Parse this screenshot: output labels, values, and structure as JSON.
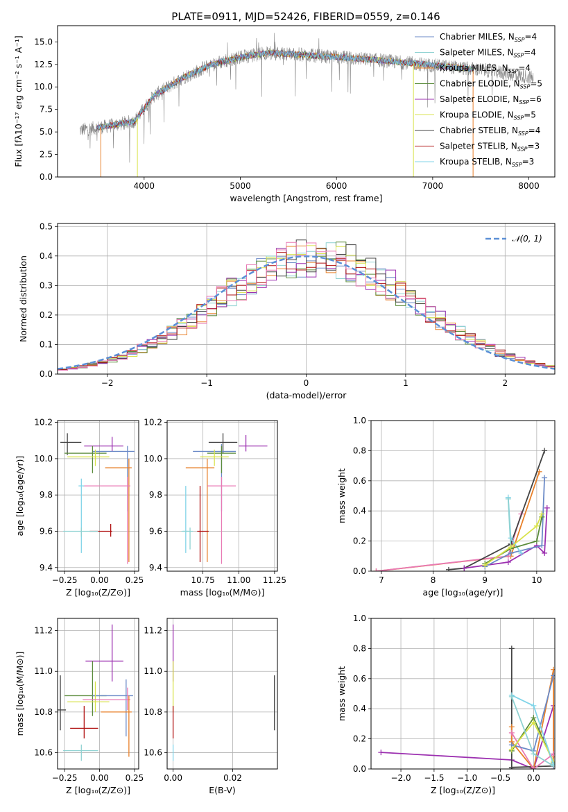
{
  "title": "PLATE=0911, MJD=52426, FIBERID=0559, z=0.146",
  "colors": {
    "Chabrier MILES": "#6b8ac7",
    "Salpeter MILES": "#8fd2d2",
    "Kroupa MILES": "#e8802a",
    "Chabrier ELODIE": "#5b8c3c",
    "Salpeter ELODIE": "#9c30b0",
    "Kroupa ELODIE": "#d8e24a",
    "Chabrier STELIB": "#444444",
    "Salpeter STELIB": "#b01010",
    "Kroupa STELIB": "#80d4e8",
    "extra_hist": "#e87ab4",
    "normal": "#5b8fd6"
  },
  "chart_data": [
    {
      "type": "line",
      "title": "PLATE=0911, MJD=52426, FIBERID=0559, z=0.146",
      "xlabel": "wavelength [Angstrom, rest frame]",
      "ylabel": "Flux [fλ10⁻¹⁷ erg cm⁻² s⁻¹ A⁻¹]",
      "xlim": [
        3100,
        8270
      ],
      "ylim": [
        0,
        16.8
      ],
      "xticks": [
        4000,
        5000,
        6000,
        7000,
        8000
      ],
      "yticks": [
        0.0,
        2.5,
        5.0,
        7.5,
        10.0,
        12.5,
        15.0
      ],
      "legend": "top-right",
      "legend_entries": [
        {
          "name": "Chabrier MILES, N",
          "sub": "SSP",
          "tail": "=4",
          "color": "Chabrier MILES"
        },
        {
          "name": "Salpeter MILES, N",
          "sub": "SSP",
          "tail": "=4",
          "color": "Salpeter MILES"
        },
        {
          "name": "Kroupa MILES, N",
          "sub": "SSP",
          "tail": "=4",
          "color": "Kroupa MILES"
        },
        {
          "name": "Chabrier ELODIE, N",
          "sub": "SSP",
          "tail": "=5",
          "color": "Chabrier ELODIE"
        },
        {
          "name": "Salpeter ELODIE, N",
          "sub": "SSP",
          "tail": "=6",
          "color": "Salpeter ELODIE"
        },
        {
          "name": "Kroupa ELODIE, N",
          "sub": "SSP",
          "tail": "=5",
          "color": "Kroupa ELODIE"
        },
        {
          "name": "Chabrier STELIB, N",
          "sub": "SSP",
          "tail": "=4",
          "color": "Chabrier STELIB"
        },
        {
          "name": "Salpeter STELIB, N",
          "sub": "SSP",
          "tail": "=3",
          "color": "Salpeter STELIB"
        },
        {
          "name": "Kroupa STELIB, N",
          "sub": "SSP",
          "tail": "=3",
          "color": "Kroupa STELIB"
        }
      ],
      "continuum_anchor": {
        "x": [
          3330,
          3600,
          3900,
          4100,
          4400,
          4700,
          5000,
          5300,
          5600,
          6000,
          6400,
          6800,
          7200,
          7600,
          8050
        ],
        "y": [
          5.2,
          5.6,
          6.2,
          9.0,
          11.0,
          12.5,
          13.3,
          13.8,
          13.6,
          13.3,
          13.0,
          12.6,
          12.2,
          11.8,
          11.0
        ]
      },
      "data_range": [
        3330,
        8050
      ],
      "model_range": [
        3500,
        7420
      ],
      "dips": [
        3550,
        3930,
        6800,
        7420
      ]
    },
    {
      "type": "histogram",
      "xlabel": "(data-model)/error",
      "ylabel": "Normed distribution",
      "xlim": [
        -2.5,
        2.5
      ],
      "ylim": [
        0,
        0.51
      ],
      "xticks": [
        -2,
        -1,
        0,
        1,
        2
      ],
      "yticks": [
        0.0,
        0.1,
        0.2,
        0.3,
        0.4,
        0.5
      ],
      "legend": "top-right",
      "legend_entry": "𝒩(0, 1)",
      "bin_width": 0.1
    },
    {
      "type": "errorbar",
      "xlabel": "Z [log₁₀(Z/Z⊙)]",
      "ylabel": "age  [log₁₀(age/yr)]",
      "xlim": [
        -0.3,
        0.28
      ],
      "ylim": [
        9.38,
        10.21
      ],
      "xticks": [
        -0.25,
        0.0,
        0.25
      ],
      "yticks": [
        9.4,
        9.6,
        9.8,
        10.0,
        10.2
      ],
      "points": [
        {
          "c": "Chabrier STELIB",
          "x": -0.23,
          "y": 10.09,
          "ex": [
            0.05,
            0.1
          ],
          "ey": [
            0.07,
            0.05
          ]
        },
        {
          "c": "Salpeter ELODIE",
          "x": 0.09,
          "y": 10.07,
          "ex": [
            0.2,
            0.08
          ],
          "ey": [
            0.03,
            0.05
          ]
        },
        {
          "c": "Chabrier MILES",
          "x": 0.2,
          "y": 10.04,
          "ex": [
            0.25,
            0.05
          ],
          "ey": [
            0.33,
            0.03
          ]
        },
        {
          "c": "Chabrier ELODIE",
          "x": -0.05,
          "y": 10.03,
          "ex": [
            0.2,
            0.1
          ],
          "ey": [
            0.11,
            0.04
          ]
        },
        {
          "c": "Kroupa ELODIE",
          "x": -0.03,
          "y": 10.01,
          "ex": [
            0.2,
            0.1
          ],
          "ey": [
            0.05,
            0.04
          ]
        },
        {
          "c": "Kroupa MILES",
          "x": 0.21,
          "y": 9.95,
          "ex": [
            0.17,
            0.02
          ],
          "ey": [
            0.52,
            0.05
          ]
        },
        {
          "c": "extra_hist",
          "x": 0.2,
          "y": 9.85,
          "ex": [
            0.32,
            0.02
          ],
          "ey": [
            0.43,
            0.05
          ]
        },
        {
          "c": "Kroupa STELIB",
          "x": -0.13,
          "y": 9.85,
          "ex": [
            0.02,
            0.02
          ],
          "ey": [
            0.37,
            0.04
          ]
        },
        {
          "c": "Salpeter STELIB",
          "x": 0.08,
          "y": 9.6,
          "ex": [
            0.15,
            0.01
          ],
          "ey": [
            0.03,
            0.04
          ]
        },
        {
          "c": "Salpeter MILES",
          "x": -0.13,
          "y": 9.6,
          "ex": [
            0.13,
            0.12
          ],
          "ey": [
            0.03,
            0.02
          ]
        }
      ]
    },
    {
      "type": "errorbar",
      "xlabel": "mass [log₁₀(M/M⊙)]",
      "xlim": [
        10.5,
        11.27
      ],
      "ylim": [
        9.38,
        10.21
      ],
      "xticks": [
        10.75,
        11.0,
        11.25
      ],
      "xtick_labels": [
        "10.75",
        "11.00",
        "11.25"
      ],
      "yticks": [
        9.4,
        9.6,
        9.8,
        10.0,
        10.2
      ],
      "points": [
        {
          "c": "Chabrier STELIB",
          "x": 10.89,
          "y": 10.09,
          "ex": [
            0.1,
            0.1
          ],
          "ey": [
            0.06,
            0.05
          ]
        },
        {
          "c": "Salpeter ELODIE",
          "x": 11.05,
          "y": 10.07,
          "ex": [
            0.05,
            0.15
          ],
          "ey": [
            0.03,
            0.06
          ]
        },
        {
          "c": "Chabrier MILES",
          "x": 10.88,
          "y": 10.04,
          "ex": [
            0.2,
            0.1
          ],
          "ey": [
            0.33,
            0.04
          ]
        },
        {
          "c": "Chabrier ELODIE",
          "x": 10.88,
          "y": 10.03,
          "ex": [
            0.1,
            0.1
          ],
          "ey": [
            0.11,
            0.04
          ]
        },
        {
          "c": "Kroupa ELODIE",
          "x": 10.83,
          "y": 10.01,
          "ex": [
            0.1,
            0.1
          ],
          "ey": [
            0.05,
            0.04
          ]
        },
        {
          "c": "Kroupa MILES",
          "x": 10.78,
          "y": 9.95,
          "ex": [
            0.15,
            0.05
          ],
          "ey": [
            0.52,
            0.05
          ]
        },
        {
          "c": "extra_hist",
          "x": 10.88,
          "y": 9.85,
          "ex": [
            0.1,
            0.1
          ],
          "ey": [
            0.43,
            0.05
          ]
        },
        {
          "c": "Kroupa STELIB",
          "x": 10.63,
          "y": 9.6,
          "ex": [
            0.02,
            0.02
          ],
          "ey": [
            0.12,
            0.25
          ]
        },
        {
          "c": "Salpeter STELIB",
          "x": 10.73,
          "y": 9.6,
          "ex": [
            0.02,
            0.06
          ],
          "ey": [
            0.17,
            0.25
          ]
        },
        {
          "c": "Salpeter MILES",
          "x": 10.66,
          "y": 9.6,
          "ex": [
            0.06,
            0.02
          ],
          "ey": [
            0.1,
            0.02
          ]
        }
      ]
    },
    {
      "type": "line",
      "xlabel": "age  [log₁₀(age/yr)]",
      "ylabel": "mass weight",
      "xlim": [
        6.8,
        10.35
      ],
      "ylim": [
        0,
        1
      ],
      "xticks": [
        7,
        8,
        9,
        10
      ],
      "yticks": [
        0.0,
        0.2,
        0.4,
        0.6,
        0.8,
        1.0
      ],
      "series": [
        {
          "c": "Kroupa MILES",
          "x": [
            6.9,
            9.5,
            10.05
          ],
          "y": [
            0.0,
            0.1,
            0.66
          ]
        },
        {
          "c": "extra_hist",
          "x": [
            6.9,
            9.45,
            9.7
          ],
          "y": [
            0.0,
            0.1,
            0.38
          ]
        },
        {
          "c": "Chabrier STELIB",
          "x": [
            8.3,
            8.6,
            9.5,
            10.15
          ],
          "y": [
            0.01,
            0.02,
            0.18,
            0.8
          ]
        },
        {
          "c": "Salpeter ELODIE",
          "x": [
            8.6,
            9.45,
            10.0,
            10.15,
            10.2
          ],
          "y": [
            0.02,
            0.06,
            0.17,
            0.12,
            0.42
          ]
        },
        {
          "c": "Chabrier MILES",
          "x": [
            9.0,
            9.5,
            10.1,
            10.15
          ],
          "y": [
            0.03,
            0.12,
            0.17,
            0.62
          ]
        },
        {
          "c": "Kroupa STELIB",
          "x": [
            9.45,
            9.5,
            9.7
          ],
          "y": [
            0.49,
            0.22,
            0.12
          ]
        },
        {
          "c": "Salpeter MILES",
          "x": [
            9.45,
            9.5
          ],
          "y": [
            0.48,
            0.15
          ]
        },
        {
          "c": "Chabrier ELODIE",
          "x": [
            9.0,
            9.5,
            10.0,
            10.1
          ],
          "y": [
            0.05,
            0.15,
            0.2,
            0.36
          ]
        },
        {
          "c": "Kroupa ELODIE",
          "x": [
            9.0,
            9.5,
            10.0,
            10.1
          ],
          "y": [
            0.04,
            0.16,
            0.3,
            0.38
          ]
        }
      ]
    },
    {
      "type": "errorbar",
      "xlabel": "Z [log₁₀(Z/Z⊙)]",
      "ylabel": "mass [log₁₀(M/M⊙)]",
      "xlim": [
        -0.3,
        0.28
      ],
      "ylim": [
        10.52,
        11.26
      ],
      "xticks": [
        -0.25,
        0.0,
        0.25
      ],
      "yticks": [
        10.6,
        10.8,
        11.0,
        11.2
      ],
      "points": [
        {
          "c": "Salpeter ELODIE",
          "x": 0.09,
          "y": 11.05,
          "ex": [
            0.19,
            0.08
          ],
          "ey": [
            0.1,
            0.18
          ]
        },
        {
          "c": "Chabrier ELODIE",
          "x": -0.05,
          "y": 10.88,
          "ex": [
            0.2,
            0.1
          ],
          "ey": [
            0.1,
            0.17
          ]
        },
        {
          "c": "Chabrier MILES",
          "x": 0.19,
          "y": 10.88,
          "ex": [
            0.24,
            0.05
          ],
          "ey": [
            0.2,
            0.08
          ]
        },
        {
          "c": "Kroupa ELODIE",
          "x": -0.03,
          "y": 10.85,
          "ex": [
            0.2,
            0.1
          ],
          "ey": [
            0.05,
            0.1
          ]
        },
        {
          "c": "extra_hist",
          "x": 0.2,
          "y": 10.86,
          "ex": [
            0.32,
            0.02
          ],
          "ey": [
            0.05,
            0.06
          ]
        },
        {
          "c": "Chabrier STELIB",
          "x": -0.28,
          "y": 10.81,
          "ex": [
            0.04,
            0.04
          ],
          "ey": [
            0.1,
            0.17
          ]
        },
        {
          "c": "Kroupa MILES",
          "x": 0.21,
          "y": 10.8,
          "ex": [
            0.2,
            0.02
          ],
          "ey": [
            0.22,
            0.08
          ]
        },
        {
          "c": "Salpeter STELIB",
          "x": -0.11,
          "y": 10.72,
          "ex": [
            0.1,
            0.1
          ],
          "ey": [
            0.05,
            0.11
          ]
        },
        {
          "c": "Salpeter MILES",
          "x": -0.13,
          "y": 10.61,
          "ex": [
            0.13,
            0.12
          ],
          "ey": [
            0.05,
            0.03
          ]
        }
      ]
    },
    {
      "type": "errorbar",
      "xlabel": "E(B-V)",
      "xlim": [
        -0.002,
        0.035
      ],
      "ylim": [
        10.52,
        11.26
      ],
      "xticks": [
        0.0,
        0.02
      ],
      "xtick_labels": [
        "0.00",
        "0.02"
      ],
      "yticks": [
        10.6,
        10.8,
        11.0,
        11.2
      ],
      "points": [
        {
          "c": "Salpeter ELODIE",
          "x": 0.0,
          "y": 11.05,
          "ex": [
            0,
            0
          ],
          "ey": [
            0.1,
            0.18
          ]
        },
        {
          "c": "Kroupa ELODIE",
          "x": 0.0,
          "y": 10.85,
          "ex": [
            0,
            0
          ],
          "ey": [
            0.05,
            0.2
          ]
        },
        {
          "c": "Salpeter STELIB",
          "x": 0.0,
          "y": 10.72,
          "ex": [
            0,
            0
          ],
          "ey": [
            0.05,
            0.11
          ]
        },
        {
          "c": "Kroupa STELIB",
          "x": 0.0,
          "y": 10.61,
          "ex": [
            0,
            0
          ],
          "ey": [
            0.05,
            0.03
          ]
        },
        {
          "c": "Chabrier STELIB",
          "x": 0.034,
          "y": 10.85,
          "ex": [
            0,
            0
          ],
          "ey": [
            0.14,
            0.13
          ]
        }
      ]
    },
    {
      "type": "line",
      "xlabel": "Z [log₁₀(Z/Z⊙)]",
      "ylabel": "mass weight",
      "xlim": [
        -2.45,
        0.32
      ],
      "ylim": [
        0,
        1
      ],
      "xticks": [
        -2.0,
        -1.5,
        -1.0,
        -0.5,
        0.0
      ],
      "xtick_labels": [
        "−2.0",
        "−1.5",
        "−1.0",
        "−0.5",
        "0.0"
      ],
      "yticks": [
        0.0,
        0.2,
        0.4,
        0.6,
        0.8,
        1.0
      ],
      "series": [
        {
          "c": "Salpeter ELODIE",
          "x": [
            -2.3,
            -0.33,
            0.0,
            0.3,
            0.3
          ],
          "y": [
            0.11,
            0.06,
            0.0,
            0.42,
            0.0
          ]
        },
        {
          "c": "Chabrier STELIB",
          "x": [
            -0.33,
            -0.33,
            -0.33,
            0.3
          ],
          "y": [
            0.8,
            0.0,
            0.01,
            0.02
          ]
        },
        {
          "c": "Kroupa MILES",
          "x": [
            -0.33,
            -0.33,
            0.0,
            0.3,
            0.3
          ],
          "y": [
            0.28,
            0.18,
            0.0,
            0.66,
            0.08
          ]
        },
        {
          "c": "extra_hist",
          "x": [
            -0.33,
            0.0,
            0.3
          ],
          "y": [
            0.24,
            0.0,
            0.1
          ]
        },
        {
          "c": "Chabrier MILES",
          "x": [
            -0.33,
            0.0,
            0.3
          ],
          "y": [
            0.16,
            0.12,
            0.62
          ]
        },
        {
          "c": "Chabrier ELODIE",
          "x": [
            -0.33,
            0.0,
            0.3
          ],
          "y": [
            0.12,
            0.34,
            0.04
          ]
        },
        {
          "c": "Kroupa ELODIE",
          "x": [
            -0.33,
            0.0,
            0.3
          ],
          "y": [
            0.13,
            0.31,
            0.05
          ]
        },
        {
          "c": "Kroupa STELIB",
          "x": [
            -0.33,
            0.0,
            0.3
          ],
          "y": [
            0.49,
            0.42,
            0.03
          ]
        },
        {
          "c": "Salpeter MILES",
          "x": [
            -0.33,
            0.0,
            0.3
          ],
          "y": [
            0.48,
            0.1,
            0.02
          ]
        }
      ]
    }
  ]
}
